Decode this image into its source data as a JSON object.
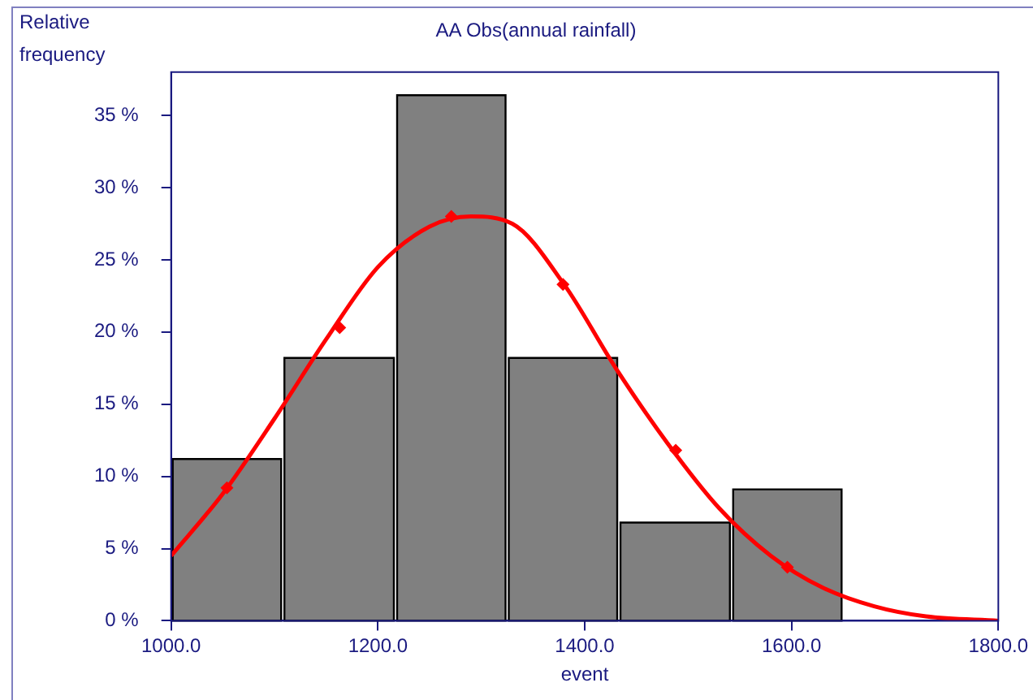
{
  "chart_data": {
    "type": "histogram",
    "title": "AA Obs(annual rainfall)",
    "xlabel": "event",
    "ylabel": "Relative frequency",
    "bins": [
      1000,
      1108,
      1217,
      1325,
      1433,
      1542,
      1650
    ],
    "values": [
      11.2,
      18.2,
      36.4,
      18.2,
      6.8,
      9.1
    ],
    "color": "#808080",
    "series": [
      {
        "type": "line",
        "color": "#ff0000",
        "marker": "none",
        "x": [
          1000,
          1050,
          1100,
          1150,
          1200,
          1250,
          1290,
          1330,
          1380,
          1430,
          1480,
          1530,
          1580,
          1630,
          1680,
          1730,
          1800
        ],
        "values": [
          4.5,
          8.8,
          14.0,
          19.5,
          24.5,
          27.3,
          28.0,
          27.5,
          23.3,
          17.5,
          12.3,
          7.8,
          4.5,
          2.3,
          1.0,
          0.3,
          0.0
        ]
      },
      {
        "type": "scatter",
        "color": "#ff0000",
        "marker": "diamond",
        "x": [
          1054,
          1163,
          1271,
          1379,
          1488,
          1596
        ],
        "values": [
          9.2,
          20.3,
          28.0,
          23.3,
          11.8,
          3.7
        ]
      }
    ],
    "xlim": [
      1000,
      1800
    ],
    "xticks": [
      {
        "value": 1000,
        "label": "1000.0"
      },
      {
        "value": 1200,
        "label": "1200.0"
      },
      {
        "value": 1400,
        "label": "1400.0"
      },
      {
        "value": 1600,
        "label": "1600.0"
      },
      {
        "value": 1800,
        "label": "1800.0"
      }
    ],
    "ylim": [
      0,
      38
    ],
    "yticks": [
      {
        "value": 0,
        "label": "0 %"
      },
      {
        "value": 5,
        "label": "5 %"
      },
      {
        "value": 10,
        "label": "10 %"
      },
      {
        "value": 15,
        "label": "15 %"
      },
      {
        "value": 20,
        "label": "20 %"
      },
      {
        "value": 25,
        "label": "25 %"
      },
      {
        "value": 30,
        "label": "30 %"
      },
      {
        "value": 35,
        "label": "35 %"
      }
    ],
    "grid": false,
    "legend": false
  }
}
